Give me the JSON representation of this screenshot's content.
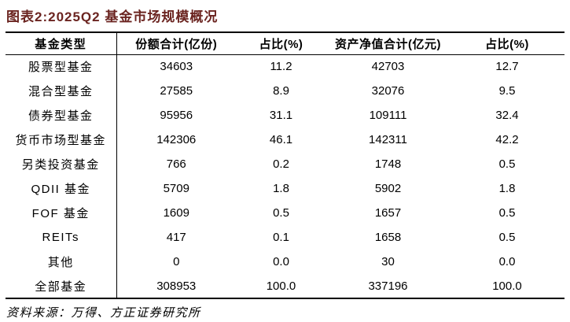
{
  "title": "图表2:2025Q2 基金市场规模概况",
  "colors": {
    "title_text": "#6b2420",
    "table_border": "#000000",
    "body_text": "#000000",
    "background": "#ffffff"
  },
  "table": {
    "headers": [
      "基金类型",
      "份额合计(亿份)",
      "占比(%)",
      "资产净值合计(亿元)",
      "占比(%)"
    ],
    "rows": [
      {
        "type": "股票型基金",
        "shares": "34603",
        "shares_pct": "11.2",
        "nav": "42703",
        "nav_pct": "12.7"
      },
      {
        "type": "混合型基金",
        "shares": "27585",
        "shares_pct": "8.9",
        "nav": "32076",
        "nav_pct": "9.5"
      },
      {
        "type": "债券型基金",
        "shares": "95956",
        "shares_pct": "31.1",
        "nav": "109111",
        "nav_pct": "32.4"
      },
      {
        "type": "货币市场型基金",
        "shares": "142306",
        "shares_pct": "46.1",
        "nav": "142311",
        "nav_pct": "42.2"
      },
      {
        "type": "另类投资基金",
        "shares": "766",
        "shares_pct": "0.2",
        "nav": "1748",
        "nav_pct": "0.5"
      },
      {
        "type": "QDII 基金",
        "shares": "5709",
        "shares_pct": "1.8",
        "nav": "5902",
        "nav_pct": "1.8"
      },
      {
        "type": "FOF 基金",
        "shares": "1609",
        "shares_pct": "0.5",
        "nav": "1657",
        "nav_pct": "0.5"
      },
      {
        "type": "REITs",
        "shares": "417",
        "shares_pct": "0.1",
        "nav": "1658",
        "nav_pct": "0.5"
      },
      {
        "type": "其他",
        "shares": "0",
        "shares_pct": "0.0",
        "nav": "30",
        "nav_pct": "0.0"
      },
      {
        "type": "全部基金",
        "shares": "308953",
        "shares_pct": "100.0",
        "nav": "337196",
        "nav_pct": "100.0"
      }
    ]
  },
  "source": "资料来源：万得、方正证券研究所"
}
